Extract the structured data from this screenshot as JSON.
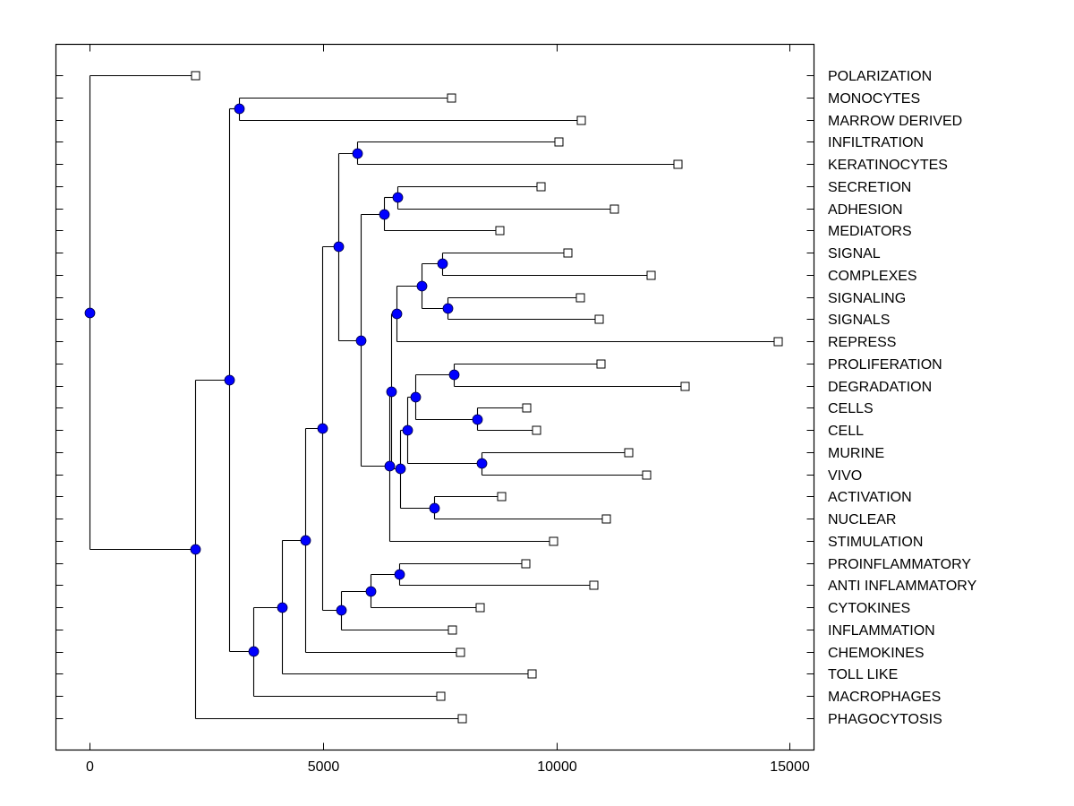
{
  "chart_data": {
    "type": "dendrogram",
    "title": "",
    "xlabel": "",
    "ylabel": "",
    "xlim": [
      -720,
      15520
    ],
    "xticks": [
      0,
      5000,
      10000,
      15000
    ],
    "xtick_labels": [
      "0",
      "5000",
      "10000",
      "15000"
    ],
    "grid": false,
    "legend": "none",
    "colors": {
      "node_fill": "#0000ff",
      "node_stroke": "#000044",
      "leaf_fill": "#ffffff",
      "line": "#000000"
    },
    "leaves": [
      {
        "label": "POLARIZATION",
        "distance": 2260
      },
      {
        "label": "MONOCYTES",
        "distance": 7740
      },
      {
        "label": "MARROW DERIVED",
        "distance": 10520
      },
      {
        "label": "INFILTRATION",
        "distance": 10040
      },
      {
        "label": "KERATINOCYTES",
        "distance": 12590
      },
      {
        "label": "SECRETION",
        "distance": 9670
      },
      {
        "label": "ADHESION",
        "distance": 11230
      },
      {
        "label": "MEDIATORS",
        "distance": 8790
      },
      {
        "label": "SIGNAL",
        "distance": 10230
      },
      {
        "label": "COMPLEXES",
        "distance": 12030
      },
      {
        "label": "SIGNALING",
        "distance": 10500
      },
      {
        "label": "SIGNALS",
        "distance": 10900
      },
      {
        "label": "REPRESS",
        "distance": 14750
      },
      {
        "label": "PROLIFERATION",
        "distance": 10940
      },
      {
        "label": "DEGRADATION",
        "distance": 12740
      },
      {
        "label": "CELLS",
        "distance": 9350
      },
      {
        "label": "CELL",
        "distance": 9560
      },
      {
        "label": "MURINE",
        "distance": 11550
      },
      {
        "label": "VIVO",
        "distance": 11930
      },
      {
        "label": "ACTIVATION",
        "distance": 8810
      },
      {
        "label": "NUCLEAR",
        "distance": 11070
      },
      {
        "label": "STIMULATION",
        "distance": 9940
      },
      {
        "label": "PROINFLAMMATORY",
        "distance": 9330
      },
      {
        "label": "ANTI INFLAMMATORY",
        "distance": 10800
      },
      {
        "label": "CYTOKINES",
        "distance": 8350
      },
      {
        "label": "INFLAMMATION",
        "distance": 7760
      },
      {
        "label": "CHEMOKINES",
        "distance": 7930
      },
      {
        "label": "TOLL LIKE",
        "distance": 9480
      },
      {
        "label": "MACROPHAGES",
        "distance": 7510
      },
      {
        "label": "PHAGOCYTOSIS",
        "distance": 7970
      }
    ],
    "nodes": [
      {
        "id": "n_mono",
        "distance": 3200,
        "children": [
          "L1",
          "L2"
        ]
      },
      {
        "id": "n_infker",
        "distance": 5730,
        "children": [
          "L3",
          "L4"
        ]
      },
      {
        "id": "n_secadh",
        "distance": 6590,
        "children": [
          "L5",
          "L6"
        ]
      },
      {
        "id": "n_med",
        "distance": 6300,
        "children": [
          "n_secadh",
          "L7"
        ]
      },
      {
        "id": "n_sigcom",
        "distance": 7550,
        "children": [
          "L8",
          "L9"
        ]
      },
      {
        "id": "n_sigs",
        "distance": 7660,
        "children": [
          "L10",
          "L11"
        ]
      },
      {
        "id": "n_sig4",
        "distance": 7110,
        "children": [
          "n_sigcom",
          "n_sigs"
        ]
      },
      {
        "id": "n_repress",
        "distance": 6570,
        "children": [
          "n_sig4",
          "L12"
        ]
      },
      {
        "id": "n_prolif",
        "distance": 7800,
        "children": [
          "L13",
          "L14"
        ]
      },
      {
        "id": "n_cells",
        "distance": 8310,
        "children": [
          "L15",
          "L16"
        ]
      },
      {
        "id": "n_pcell",
        "distance": 6970,
        "children": [
          "n_prolif",
          "n_cells"
        ]
      },
      {
        "id": "n_murine",
        "distance": 8390,
        "children": [
          "L17",
          "L18"
        ]
      },
      {
        "id": "n_pcm",
        "distance": 6800,
        "children": [
          "n_pcell",
          "n_murine"
        ]
      },
      {
        "id": "n_act",
        "distance": 7390,
        "children": [
          "L19",
          "L20"
        ]
      },
      {
        "id": "n_pcma",
        "distance": 6650,
        "children": [
          "n_pcm",
          "n_act"
        ]
      },
      {
        "id": "n_big",
        "distance": 6460,
        "children": [
          "n_repress",
          "n_pcma"
        ]
      },
      {
        "id": "n_stim",
        "distance": 6420,
        "children": [
          "n_big",
          "L21"
        ]
      },
      {
        "id": "n_mid",
        "distance": 5800,
        "children": [
          "n_med",
          "n_stim"
        ]
      },
      {
        "id": "n_upper",
        "distance": 5330,
        "children": [
          "n_infker",
          "n_mid"
        ]
      },
      {
        "id": "n_proanti",
        "distance": 6630,
        "children": [
          "L22",
          "L23"
        ]
      },
      {
        "id": "n_cyto",
        "distance": 6020,
        "children": [
          "n_proanti",
          "L24"
        ]
      },
      {
        "id": "n_infl",
        "distance": 5380,
        "children": [
          "n_cyto",
          "L25"
        ]
      },
      {
        "id": "n_core",
        "distance": 4980,
        "children": [
          "n_upper",
          "n_infl"
        ]
      },
      {
        "id": "n_chemo",
        "distance": 4620,
        "children": [
          "n_core",
          "L26"
        ]
      },
      {
        "id": "n_toll",
        "distance": 4120,
        "children": [
          "n_chemo",
          "L27"
        ]
      },
      {
        "id": "n_macro",
        "distance": 3510,
        "children": [
          "n_toll",
          "L28"
        ]
      },
      {
        "id": "n_main",
        "distance": 2990,
        "children": [
          "n_mono",
          "n_macro"
        ]
      },
      {
        "id": "n_phago",
        "distance": 2260,
        "children": [
          "n_main",
          "L29"
        ]
      },
      {
        "id": "root",
        "distance": 0,
        "children": [
          "L0",
          "n_phago"
        ]
      }
    ]
  }
}
